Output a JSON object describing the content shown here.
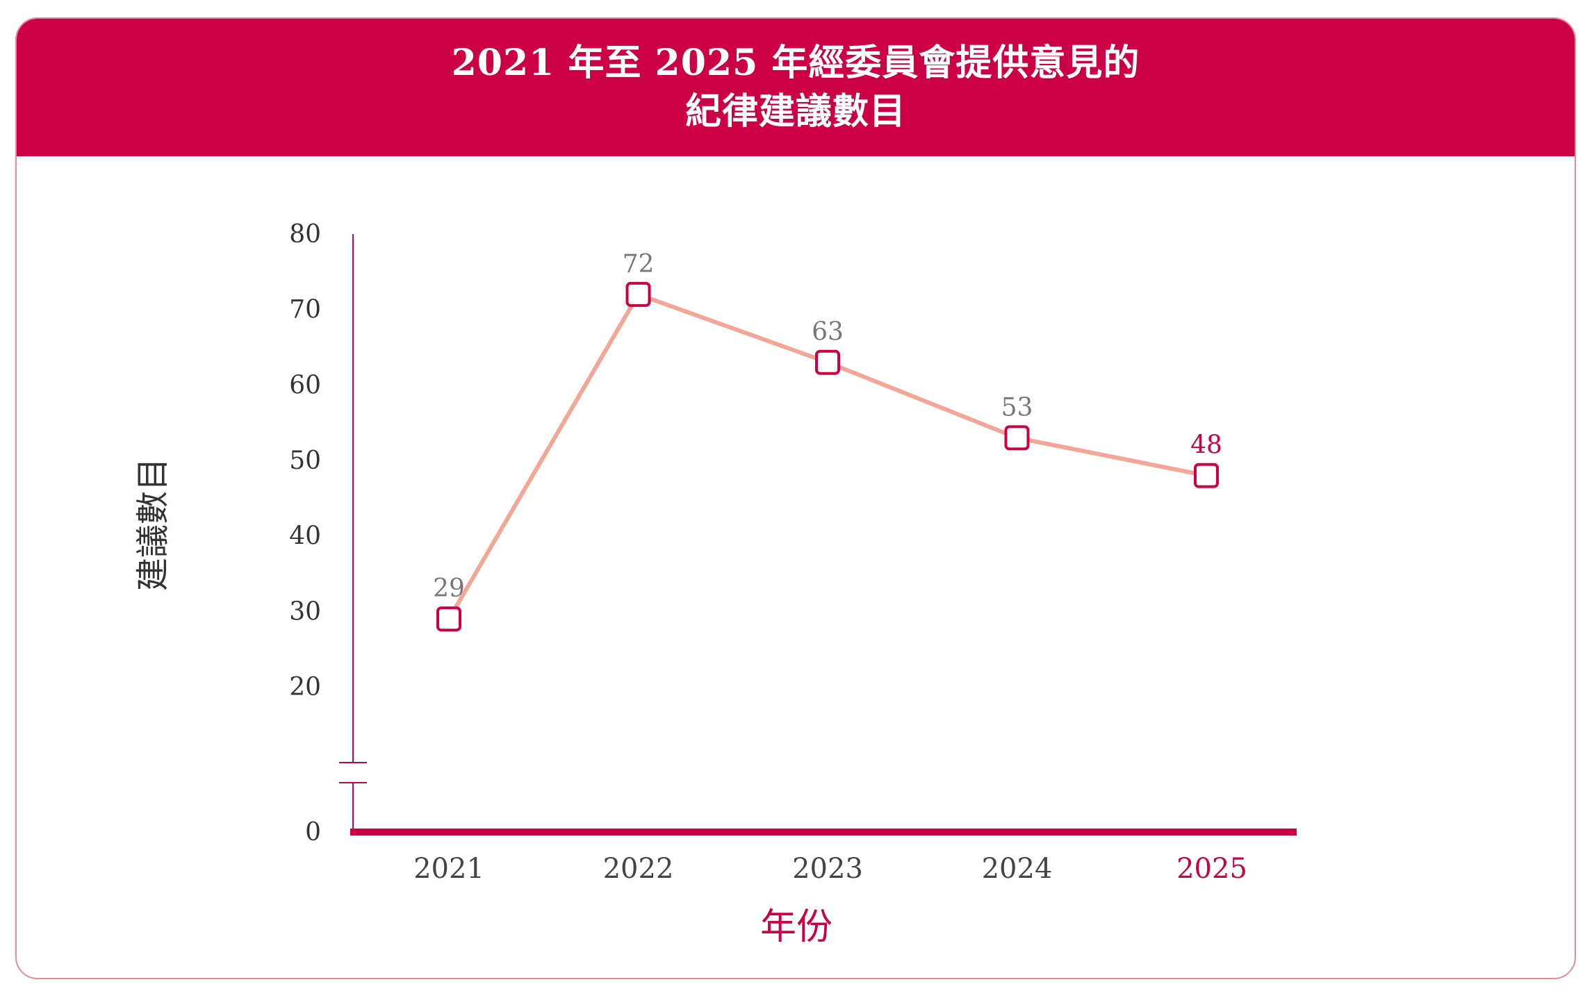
{
  "header": {
    "title_line1": "2021 年至 2025 年經委員會提供意見的",
    "title_line2": "紀律建議數目"
  },
  "colors": {
    "accent": "#cc0044",
    "line": "#f4a596",
    "border": "#e58a9b"
  },
  "chart_data": {
    "type": "line",
    "title": "2021 年至 2025 年經委員會提供意見的紀律建議數目",
    "xlabel": "年份",
    "ylabel": "建議數目",
    "categories": [
      "2021",
      "2022",
      "2023",
      "2024",
      "2025"
    ],
    "series": [
      {
        "values": [
          29,
          72,
          63,
          53,
          48
        ]
      }
    ],
    "y_ticks": [
      "0",
      "20",
      "30",
      "40",
      "50",
      "60",
      "70",
      "80"
    ],
    "ylim": [
      0,
      80
    ],
    "y_axis_break": true,
    "grid": false,
    "legend": "none",
    "highlight_category": "2025"
  }
}
